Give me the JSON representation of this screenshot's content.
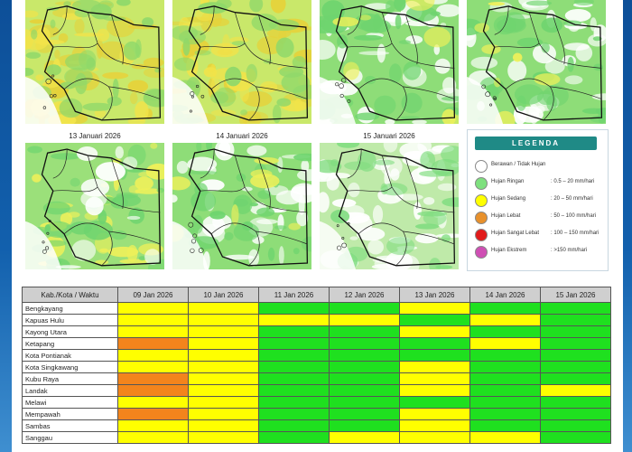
{
  "colors": {
    "green": "#1fe01f",
    "yellow": "#ffff00",
    "orange": "#f3841c",
    "legend_header": "#1f8a86"
  },
  "maps": [
    {
      "title": "",
      "variant": "wet"
    },
    {
      "title": "",
      "variant": "wet"
    },
    {
      "title": "",
      "variant": "light"
    },
    {
      "title": "",
      "variant": "light"
    },
    {
      "title": "13 Januari 2026",
      "variant": "medium"
    },
    {
      "title": "14 Januari 2026",
      "variant": "light"
    },
    {
      "title": "15 Januari 2026",
      "variant": "dry"
    }
  ],
  "legend": {
    "title": "LEGENDA",
    "items": [
      {
        "label": "Berawan / Tidak Hujan",
        "range": "",
        "color": "#ffffff"
      },
      {
        "label": "Hujan Ringan",
        "range": ": 0.5 – 20 mm/hari",
        "color": "#7ee07e"
      },
      {
        "label": "Hujan Sedang",
        "range": ": 20 – 50 mm/hari",
        "color": "#ffff00"
      },
      {
        "label": "Hujan Lebat",
        "range": ": 50 – 100 mm/hari",
        "color": "#e8912c"
      },
      {
        "label": "Hujan Sangat Lebat",
        "range": ": 100 – 150 mm/hari",
        "color": "#e11b1b"
      },
      {
        "label": "Hujan Ekstrem",
        "range": ": >150 mm/hari",
        "color": "#cf4fb4"
      }
    ]
  },
  "table": {
    "corner": "Kab./Kota / Waktu",
    "dates": [
      "09 Jan 2026",
      "10 Jan 2026",
      "11 Jan 2026",
      "12 Jan 2026",
      "13 Jan 2026",
      "14 Jan 2026",
      "15 Jan 2026"
    ],
    "rows": [
      {
        "name": "Bengkayang",
        "levels": [
          "sedang",
          "sedang",
          "ringan",
          "ringan",
          "sedang",
          "ringan",
          "ringan"
        ]
      },
      {
        "name": "Kapuas Hulu",
        "levels": [
          "sedang",
          "sedang",
          "sedang",
          "sedang",
          "ringan",
          "sedang",
          "ringan"
        ]
      },
      {
        "name": "Kayong Utara",
        "levels": [
          "sedang",
          "sedang",
          "ringan",
          "ringan",
          "sedang",
          "ringan",
          "ringan"
        ]
      },
      {
        "name": "Ketapang",
        "levels": [
          "lebat",
          "sedang",
          "ringan",
          "ringan",
          "ringan",
          "sedang",
          "ringan"
        ]
      },
      {
        "name": "Kota Pontianak",
        "levels": [
          "sedang",
          "sedang",
          "ringan",
          "ringan",
          "ringan",
          "ringan",
          "ringan"
        ]
      },
      {
        "name": "Kota Singkawang",
        "levels": [
          "sedang",
          "sedang",
          "ringan",
          "ringan",
          "sedang",
          "ringan",
          "ringan"
        ]
      },
      {
        "name": "Kubu Raya",
        "levels": [
          "lebat",
          "sedang",
          "ringan",
          "ringan",
          "sedang",
          "ringan",
          "ringan"
        ]
      },
      {
        "name": "Landak",
        "levels": [
          "lebat",
          "sedang",
          "ringan",
          "ringan",
          "sedang",
          "ringan",
          "sedang"
        ]
      },
      {
        "name": "Melawi",
        "levels": [
          "sedang",
          "sedang",
          "ringan",
          "ringan",
          "ringan",
          "ringan",
          "ringan"
        ]
      },
      {
        "name": "Mempawah",
        "levels": [
          "lebat",
          "sedang",
          "ringan",
          "ringan",
          "sedang",
          "ringan",
          "ringan"
        ]
      },
      {
        "name": "Sambas",
        "levels": [
          "sedang",
          "sedang",
          "ringan",
          "ringan",
          "sedang",
          "ringan",
          "ringan"
        ]
      },
      {
        "name": "Sanggau",
        "levels": [
          "sedang",
          "sedang",
          "ringan",
          "sedang",
          "sedang",
          "sedang",
          "ringan"
        ]
      }
    ]
  }
}
